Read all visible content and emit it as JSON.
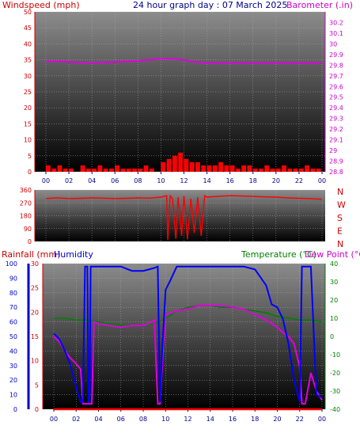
{
  "header": {
    "title": "24 hour graph day : 07 March 2025",
    "left_label": "Windspeed (mph)",
    "right_label": "Barometer (.in)"
  },
  "colors": {
    "wind": "#ff0000",
    "barometer": "#e000e0",
    "wind_direction": "#ff0000",
    "humidity": "#0000ff",
    "temperature": "#008000",
    "dew_point": "#e000e0",
    "rainfall": "#ff0000",
    "axis_red": "#cc0000",
    "axis_blue": "#0000cc",
    "axis_green": "#008000",
    "axis_magenta": "#cc00cc"
  },
  "chart_data": [
    {
      "id": "wind-baro",
      "type": "line",
      "title": "24 hour graph day : 07 March 2025",
      "x_ticks": [
        "00",
        "02",
        "04",
        "06",
        "08",
        "10",
        "12",
        "14",
        "16",
        "18",
        "20",
        "22",
        "00"
      ],
      "left_axis": {
        "label": "Windspeed (mph)",
        "ylim": [
          0,
          50
        ],
        "ticks": [
          "0",
          "5",
          "10",
          "15",
          "20",
          "25",
          "30",
          "35",
          "40",
          "45",
          "50"
        ]
      },
      "right_axis": {
        "label": "Barometer (.in)",
        "ylim": [
          28.8,
          30.3
        ],
        "ticks": [
          "28.8",
          "28.9",
          "29",
          "29.1",
          "29.2",
          "29.3",
          "29.4",
          "29.5",
          "29.6",
          "29.7",
          "29.8",
          "29.9",
          "30",
          "30.1",
          "30.2"
        ]
      },
      "series": [
        {
          "name": "Barometer",
          "axis": "right",
          "x": [
            0,
            2,
            4,
            6,
            8,
            10,
            11,
            12,
            13,
            14,
            16,
            18,
            20,
            22,
            24
          ],
          "y": [
            29.84,
            29.83,
            29.82,
            29.83,
            29.84,
            29.86,
            29.86,
            29.85,
            29.83,
            29.82,
            29.82,
            29.82,
            29.82,
            29.82,
            29.82
          ]
        },
        {
          "name": "Windspeed",
          "axis": "left",
          "type": "bar",
          "x": [
            0,
            0.5,
            1,
            1.5,
            2,
            2.5,
            3,
            3.5,
            4,
            4.5,
            5,
            5.5,
            6,
            6.5,
            7,
            7.5,
            8,
            8.5,
            9,
            9.5,
            10,
            10.5,
            11,
            11.5,
            12,
            12.5,
            13,
            13.5,
            14,
            14.5,
            15,
            15.5,
            16,
            16.5,
            17,
            17.5,
            18,
            18.5,
            19,
            19.5,
            20,
            20.5,
            21,
            21.5,
            22,
            22.5,
            23,
            23.5
          ],
          "y": [
            2,
            1,
            2,
            1,
            1,
            0,
            2,
            1,
            1,
            2,
            1,
            1,
            2,
            1,
            1,
            1,
            1,
            2,
            1,
            0,
            3,
            4,
            5,
            6,
            4,
            3,
            3,
            2,
            2,
            2,
            3,
            2,
            2,
            1,
            2,
            2,
            1,
            1,
            2,
            1,
            1,
            2,
            1,
            1,
            1,
            2,
            1,
            1
          ]
        }
      ]
    },
    {
      "id": "wind-direction",
      "type": "line",
      "left_axis": {
        "ylim": [
          0,
          360
        ],
        "ticks": [
          "0",
          "90",
          "180",
          "270",
          "360"
        ]
      },
      "right_labels": [
        "N",
        "W",
        "S",
        "E",
        "N"
      ],
      "series": [
        {
          "name": "Wind direction",
          "x": [
            0,
            1,
            2,
            3,
            4,
            5,
            6,
            7,
            8,
            9,
            10,
            10.5,
            10.6,
            10.8,
            11,
            11.3,
            11.5,
            11.8,
            12,
            12.3,
            12.6,
            12.9,
            13.2,
            13.5,
            13.8,
            14,
            15,
            16,
            17,
            18,
            19,
            20,
            21,
            22,
            23,
            24
          ],
          "y": [
            300,
            305,
            300,
            302,
            305,
            303,
            300,
            302,
            305,
            303,
            310,
            320,
            10,
            320,
            300,
            20,
            310,
            40,
            320,
            15,
            300,
            60,
            310,
            40,
            320,
            310,
            315,
            320,
            318,
            315,
            312,
            310,
            305,
            302,
            300,
            295
          ]
        }
      ]
    },
    {
      "id": "temp-hum",
      "type": "line",
      "x_ticks": [
        "00",
        "02",
        "04",
        "06",
        "08",
        "10",
        "12",
        "14",
        "16",
        "18",
        "20",
        "22",
        "00"
      ],
      "labels": {
        "rainfall": "Rainfall (mm)",
        "humidity": "Humidity",
        "temperature": "Temperature (°C)",
        "dew_point": "Dew Point (°C)"
      },
      "humidity_axis": {
        "ylim": [
          0,
          100
        ],
        "ticks": [
          "0",
          "10",
          "20",
          "30",
          "40",
          "50",
          "60",
          "70",
          "80",
          "90",
          "100"
        ]
      },
      "rain_axis": {
        "ylim": [
          0,
          30
        ],
        "ticks": [
          "0",
          "5",
          "10",
          "15",
          "20",
          "25",
          "30"
        ]
      },
      "temp_axis": {
        "ylim": [
          -40,
          40
        ],
        "ticks": [
          "-40",
          "-30",
          "-20",
          "-10",
          "0",
          "10",
          "20",
          "30",
          "40"
        ]
      },
      "series": [
        {
          "name": "Humidity",
          "axis": "humidity",
          "x": [
            0,
            0.5,
            1,
            1.5,
            2,
            2.4,
            2.6,
            2.8,
            3.0,
            3.1,
            3.2,
            3.3,
            3.4,
            3.6,
            4,
            5,
            6,
            7,
            8,
            9,
            9.3,
            9.5,
            9.7,
            10,
            10.4,
            11,
            12,
            13,
            14,
            15,
            16,
            17,
            18,
            19,
            19.5,
            20,
            20.5,
            21,
            21.5,
            22,
            22.2,
            22.5,
            23,
            23.5,
            24
          ],
          "y": [
            52,
            48,
            40,
            30,
            15,
            5,
            5,
            98,
            98,
            5,
            5,
            98,
            98,
            98,
            98,
            98,
            98,
            95,
            95,
            97,
            98,
            5,
            40,
            82,
            88,
            98,
            98,
            98,
            98,
            98,
            98,
            98,
            96,
            85,
            72,
            70,
            62,
            45,
            20,
            5,
            98,
            98,
            98,
            10,
            8
          ]
        },
        {
          "name": "Temperature",
          "axis": "temp",
          "x": [
            0,
            1,
            2,
            3,
            4,
            5,
            6,
            7,
            8,
            9,
            10,
            11,
            12,
            13,
            14,
            15,
            16,
            17,
            18,
            19,
            20,
            21,
            22,
            23,
            24
          ],
          "y": [
            10,
            10,
            9,
            9,
            8,
            7,
            6,
            6,
            6,
            7,
            10,
            14,
            16,
            17,
            17,
            16,
            16,
            15,
            14,
            13,
            11,
            10,
            9,
            9,
            8
          ]
        },
        {
          "name": "Dew Point",
          "axis": "temp",
          "x": [
            0,
            0.5,
            1,
            1.5,
            2,
            2.4,
            2.6,
            2.8,
            3.0,
            3.2,
            3.4,
            3.6,
            4,
            5,
            6,
            7,
            8,
            8.5,
            9,
            9.3,
            9.5,
            9.8,
            10,
            11,
            12,
            13,
            14,
            15,
            16,
            17,
            18,
            19,
            20,
            20.5,
            21,
            21.5,
            22,
            22.2,
            22.5,
            23,
            23.5,
            24
          ],
          "y": [
            0,
            -3,
            -8,
            -12,
            -15,
            -18,
            -37,
            -37,
            -37,
            -37,
            -37,
            8,
            7,
            6,
            5,
            6,
            6,
            7,
            9,
            -37,
            -37,
            -5,
            12,
            14,
            15,
            17,
            17,
            17,
            16,
            15,
            12,
            9,
            5,
            2,
            0,
            -4,
            -17,
            -37,
            -37,
            -20,
            -30,
            -35
          ]
        },
        {
          "name": "Rainfall",
          "axis": "rain",
          "x": [
            0,
            24
          ],
          "y": [
            0,
            0
          ]
        }
      ]
    }
  ]
}
